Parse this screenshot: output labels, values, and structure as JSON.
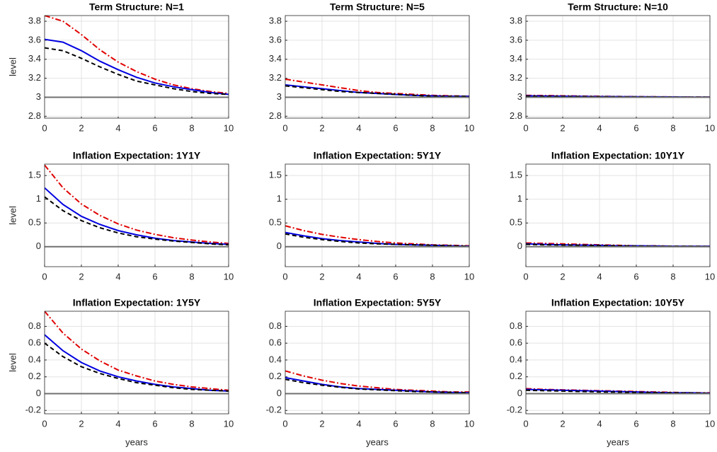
{
  "chart_data": [
    {
      "type": "line",
      "title": "Term Structure: N=1",
      "ylabel": "level",
      "x": [
        0,
        1,
        2,
        3,
        4,
        5,
        6,
        7,
        8,
        9,
        10
      ],
      "xlim": [
        0,
        10
      ],
      "xticks": [
        0,
        2,
        4,
        6,
        8,
        10
      ],
      "ylim": [
        2.78,
        3.86
      ],
      "yticks": [
        2.8,
        3,
        3.2,
        3.4,
        3.6,
        3.8
      ],
      "grid": true,
      "series": [
        {
          "color": "#e00000",
          "dash": "dashdot",
          "values": [
            3.86,
            3.8,
            3.66,
            3.5,
            3.37,
            3.27,
            3.19,
            3.13,
            3.09,
            3.06,
            3.04
          ]
        },
        {
          "color": "#0000e0",
          "dash": "solid",
          "values": [
            3.61,
            3.58,
            3.49,
            3.38,
            3.29,
            3.21,
            3.15,
            3.11,
            3.08,
            3.05,
            3.03
          ]
        },
        {
          "color": "#000000",
          "dash": "dashed",
          "values": [
            3.52,
            3.49,
            3.41,
            3.32,
            3.24,
            3.17,
            3.13,
            3.09,
            3.06,
            3.04,
            3.03
          ]
        },
        {
          "color": "#707070",
          "dash": "solid",
          "values": [
            3,
            3,
            3,
            3,
            3,
            3,
            3,
            3,
            3,
            3,
            3
          ]
        }
      ]
    },
    {
      "type": "line",
      "title": "Term Structure: N=5",
      "x": [
        0,
        1,
        2,
        3,
        4,
        5,
        6,
        7,
        8,
        9,
        10
      ],
      "xlim": [
        0,
        10
      ],
      "xticks": [
        0,
        2,
        4,
        6,
        8,
        10
      ],
      "ylim": [
        2.78,
        3.86
      ],
      "yticks": [
        2.8,
        3,
        3.2,
        3.4,
        3.6,
        3.8
      ],
      "grid": true,
      "series": [
        {
          "color": "#e00000",
          "dash": "dashdot",
          "values": [
            3.19,
            3.16,
            3.13,
            3.1,
            3.07,
            3.05,
            3.04,
            3.03,
            3.02,
            3.015,
            3.01
          ]
        },
        {
          "color": "#0000e0",
          "dash": "solid",
          "values": [
            3.13,
            3.11,
            3.09,
            3.07,
            3.05,
            3.04,
            3.03,
            3.02,
            3.015,
            3.01,
            3.01
          ]
        },
        {
          "color": "#000000",
          "dash": "dashed",
          "values": [
            3.12,
            3.1,
            3.08,
            3.06,
            3.05,
            3.04,
            3.03,
            3.02,
            3.01,
            3.01,
            3.01
          ]
        },
        {
          "color": "#707070",
          "dash": "solid",
          "values": [
            3,
            3,
            3,
            3,
            3,
            3,
            3,
            3,
            3,
            3,
            3
          ]
        }
      ]
    },
    {
      "type": "line",
      "title": "Term Structure: N=10",
      "x": [
        0,
        1,
        2,
        3,
        4,
        5,
        6,
        7,
        8,
        9,
        10
      ],
      "xlim": [
        0,
        10
      ],
      "xticks": [
        0,
        2,
        4,
        6,
        8,
        10
      ],
      "ylim": [
        2.78,
        3.86
      ],
      "yticks": [
        2.8,
        3,
        3.2,
        3.4,
        3.6,
        3.8
      ],
      "grid": true,
      "series": [
        {
          "color": "#e00000",
          "dash": "dashdot",
          "values": [
            3.02,
            3.018,
            3.015,
            3.012,
            3.01,
            3.008,
            3.006,
            3.005,
            3.004,
            3.003,
            3.002
          ]
        },
        {
          "color": "#0000e0",
          "dash": "solid",
          "values": [
            3.015,
            3.013,
            3.011,
            3.009,
            3.007,
            3.006,
            3.005,
            3.004,
            3.003,
            3.002,
            3.002
          ]
        },
        {
          "color": "#000000",
          "dash": "dashed",
          "values": [
            3.01,
            3.009,
            3.008,
            3.007,
            3.006,
            3.005,
            3.004,
            3.003,
            3.002,
            3.002,
            3.001
          ]
        },
        {
          "color": "#707070",
          "dash": "solid",
          "values": [
            3,
            3,
            3,
            3,
            3,
            3,
            3,
            3,
            3,
            3,
            3
          ]
        }
      ]
    },
    {
      "type": "line",
      "title": "Inflation Expectation: 1Y1Y",
      "ylabel": "level",
      "x": [
        0,
        1,
        2,
        3,
        4,
        5,
        6,
        7,
        8,
        9,
        10
      ],
      "xlim": [
        0,
        10
      ],
      "xticks": [
        0,
        2,
        4,
        6,
        8,
        10
      ],
      "ylim": [
        -0.42,
        1.74
      ],
      "yticks": [
        0,
        0.5,
        1,
        1.5
      ],
      "grid": true,
      "series": [
        {
          "color": "#e00000",
          "dash": "dashdot",
          "values": [
            1.72,
            1.24,
            0.9,
            0.66,
            0.48,
            0.35,
            0.26,
            0.19,
            0.14,
            0.1,
            0.07
          ]
        },
        {
          "color": "#0000e0",
          "dash": "solid",
          "values": [
            1.24,
            0.89,
            0.64,
            0.47,
            0.34,
            0.25,
            0.18,
            0.13,
            0.1,
            0.07,
            0.05
          ]
        },
        {
          "color": "#000000",
          "dash": "dashed",
          "values": [
            1.05,
            0.76,
            0.55,
            0.4,
            0.29,
            0.21,
            0.16,
            0.12,
            0.09,
            0.06,
            0.04
          ]
        },
        {
          "color": "#707070",
          "dash": "solid",
          "values": [
            0,
            0,
            0,
            0,
            0,
            0,
            0,
            0,
            0,
            0,
            0
          ]
        }
      ]
    },
    {
      "type": "line",
      "title": "Inflation Expectation: 5Y1Y",
      "x": [
        0,
        1,
        2,
        3,
        4,
        5,
        6,
        7,
        8,
        9,
        10
      ],
      "xlim": [
        0,
        10
      ],
      "xticks": [
        0,
        2,
        4,
        6,
        8,
        10
      ],
      "ylim": [
        -0.42,
        1.74
      ],
      "yticks": [
        0,
        0.5,
        1,
        1.5
      ],
      "grid": true,
      "series": [
        {
          "color": "#e00000",
          "dash": "dashdot",
          "values": [
            0.44,
            0.34,
            0.26,
            0.2,
            0.15,
            0.11,
            0.08,
            0.06,
            0.04,
            0.03,
            0.02
          ]
        },
        {
          "color": "#0000e0",
          "dash": "solid",
          "values": [
            0.3,
            0.23,
            0.17,
            0.13,
            0.1,
            0.07,
            0.05,
            0.04,
            0.03,
            0.02,
            0.01
          ]
        },
        {
          "color": "#000000",
          "dash": "dashed",
          "values": [
            0.27,
            0.2,
            0.15,
            0.11,
            0.08,
            0.06,
            0.05,
            0.04,
            0.03,
            0.02,
            0.01
          ]
        },
        {
          "color": "#707070",
          "dash": "solid",
          "values": [
            0,
            0,
            0,
            0,
            0,
            0,
            0,
            0,
            0,
            0,
            0
          ]
        }
      ]
    },
    {
      "type": "line",
      "title": "Inflation Expectation: 10Y1Y",
      "x": [
        0,
        1,
        2,
        3,
        4,
        5,
        6,
        7,
        8,
        9,
        10
      ],
      "xlim": [
        0,
        10
      ],
      "xticks": [
        0,
        2,
        4,
        6,
        8,
        10
      ],
      "ylim": [
        -0.42,
        1.74
      ],
      "yticks": [
        0,
        0.5,
        1,
        1.5
      ],
      "grid": true,
      "series": [
        {
          "color": "#e00000",
          "dash": "dashdot",
          "values": [
            0.08,
            0.07,
            0.06,
            0.05,
            0.04,
            0.03,
            0.02,
            0.02,
            0.01,
            0.01,
            0.01
          ]
        },
        {
          "color": "#0000e0",
          "dash": "solid",
          "values": [
            0.06,
            0.05,
            0.04,
            0.035,
            0.03,
            0.02,
            0.02,
            0.015,
            0.01,
            0.01,
            0.01
          ]
        },
        {
          "color": "#000000",
          "dash": "dashed",
          "values": [
            0.05,
            0.04,
            0.035,
            0.03,
            0.025,
            0.02,
            0.015,
            0.01,
            0.01,
            0.01,
            0.005
          ]
        },
        {
          "color": "#707070",
          "dash": "solid",
          "values": [
            0,
            0,
            0,
            0,
            0,
            0,
            0,
            0,
            0,
            0,
            0
          ]
        }
      ]
    },
    {
      "type": "line",
      "title": "Inflation Expectation: 1Y5Y",
      "ylabel": "level",
      "xlabel": "years",
      "x": [
        0,
        1,
        2,
        3,
        4,
        5,
        6,
        7,
        8,
        9,
        10
      ],
      "xlim": [
        0,
        10
      ],
      "xticks": [
        0,
        2,
        4,
        6,
        8,
        10
      ],
      "ylim": [
        -0.24,
        0.98
      ],
      "yticks": [
        -0.2,
        0,
        0.2,
        0.4,
        0.6,
        0.8
      ],
      "grid": true,
      "series": [
        {
          "color": "#e00000",
          "dash": "dashdot",
          "values": [
            0.98,
            0.72,
            0.53,
            0.39,
            0.28,
            0.21,
            0.15,
            0.11,
            0.08,
            0.06,
            0.04
          ]
        },
        {
          "color": "#0000e0",
          "dash": "solid",
          "values": [
            0.7,
            0.51,
            0.37,
            0.27,
            0.2,
            0.15,
            0.11,
            0.08,
            0.06,
            0.04,
            0.03
          ]
        },
        {
          "color": "#000000",
          "dash": "dashed",
          "values": [
            0.6,
            0.44,
            0.32,
            0.24,
            0.18,
            0.13,
            0.1,
            0.07,
            0.05,
            0.04,
            0.03
          ]
        },
        {
          "color": "#707070",
          "dash": "solid",
          "values": [
            0,
            0,
            0,
            0,
            0,
            0,
            0,
            0,
            0,
            0,
            0
          ]
        }
      ]
    },
    {
      "type": "line",
      "title": "Inflation Expectation: 5Y5Y",
      "xlabel": "years",
      "x": [
        0,
        1,
        2,
        3,
        4,
        5,
        6,
        7,
        8,
        9,
        10
      ],
      "xlim": [
        0,
        10
      ],
      "xticks": [
        0,
        2,
        4,
        6,
        8,
        10
      ],
      "ylim": [
        -0.24,
        0.98
      ],
      "yticks": [
        -0.2,
        0,
        0.2,
        0.4,
        0.6,
        0.8
      ],
      "grid": true,
      "series": [
        {
          "color": "#e00000",
          "dash": "dashdot",
          "values": [
            0.27,
            0.21,
            0.16,
            0.12,
            0.09,
            0.07,
            0.05,
            0.04,
            0.03,
            0.02,
            0.02
          ]
        },
        {
          "color": "#0000e0",
          "dash": "solid",
          "values": [
            0.19,
            0.15,
            0.11,
            0.08,
            0.06,
            0.05,
            0.04,
            0.03,
            0.02,
            0.015,
            0.01
          ]
        },
        {
          "color": "#000000",
          "dash": "dashed",
          "values": [
            0.17,
            0.13,
            0.1,
            0.075,
            0.055,
            0.045,
            0.035,
            0.025,
            0.02,
            0.015,
            0.01
          ]
        },
        {
          "color": "#707070",
          "dash": "solid",
          "values": [
            0,
            0,
            0,
            0,
            0,
            0,
            0,
            0,
            0,
            0,
            0
          ]
        }
      ]
    },
    {
      "type": "line",
      "title": "Inflation Expectation: 10Y5Y",
      "xlabel": "years",
      "x": [
        0,
        1,
        2,
        3,
        4,
        5,
        6,
        7,
        8,
        9,
        10
      ],
      "xlim": [
        0,
        10
      ],
      "xticks": [
        0,
        2,
        4,
        6,
        8,
        10
      ],
      "ylim": [
        -0.24,
        0.98
      ],
      "yticks": [
        -0.2,
        0,
        0.2,
        0.4,
        0.6,
        0.8
      ],
      "grid": true,
      "series": [
        {
          "color": "#e00000",
          "dash": "dashdot",
          "values": [
            0.06,
            0.05,
            0.045,
            0.04,
            0.035,
            0.03,
            0.025,
            0.02,
            0.015,
            0.01,
            0.01
          ]
        },
        {
          "color": "#0000e0",
          "dash": "solid",
          "values": [
            0.05,
            0.045,
            0.04,
            0.035,
            0.03,
            0.025,
            0.02,
            0.015,
            0.01,
            0.01,
            0.005
          ]
        },
        {
          "color": "#000000",
          "dash": "dashed",
          "values": [
            0.04,
            0.035,
            0.03,
            0.025,
            0.02,
            0.018,
            0.015,
            0.012,
            0.01,
            0.008,
            0.005
          ]
        },
        {
          "color": "#707070",
          "dash": "solid",
          "values": [
            0,
            0,
            0,
            0,
            0,
            0,
            0,
            0,
            0,
            0,
            0
          ]
        }
      ]
    }
  ]
}
